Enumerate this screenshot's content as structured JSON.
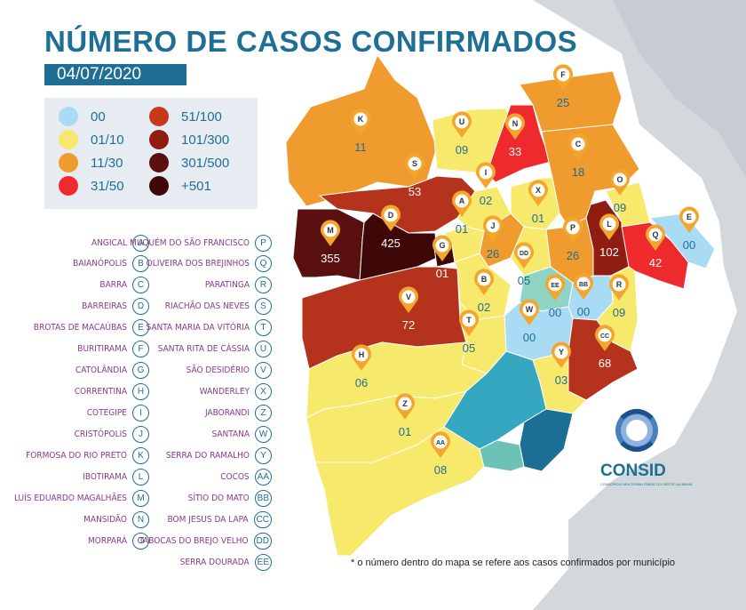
{
  "title": "NÚMERO DE CASOS CONFIRMADOS",
  "date": "04/07/2020",
  "legend": [
    {
      "label": "00",
      "color": "#a9dcf4"
    },
    {
      "label": "01/10",
      "color": "#f6e96b"
    },
    {
      "label": "11/30",
      "color": "#ef9b2e"
    },
    {
      "label": "31/50",
      "color": "#ef2a2d"
    },
    {
      "label": "51/100",
      "color": "#c8391c"
    },
    {
      "label": "101/300",
      "color": "#8f1d12"
    },
    {
      "label": "301/500",
      "color": "#5b1010"
    },
    {
      "label": "+501",
      "color": "#3e0808"
    }
  ],
  "municipalities": [
    {
      "code": "A",
      "name": "ANGICAL",
      "cases": "01"
    },
    {
      "code": "B",
      "name": "BAIANÓPOLIS",
      "cases": "02"
    },
    {
      "code": "C",
      "name": "BARRA",
      "cases": "18"
    },
    {
      "code": "D",
      "name": "BARREIRAS",
      "cases": "425"
    },
    {
      "code": "E",
      "name": "BROTAS DE MACAÚBAS",
      "cases": "00"
    },
    {
      "code": "F",
      "name": "BURITIRAMA",
      "cases": "25"
    },
    {
      "code": "G",
      "name": "CATOLÂNDIA",
      "cases": "01"
    },
    {
      "code": "H",
      "name": "CORRENTINA",
      "cases": "06"
    },
    {
      "code": "I",
      "name": "COTEGIPE",
      "cases": "02"
    },
    {
      "code": "J",
      "name": "CRISTÓPOLIS",
      "cases": "26"
    },
    {
      "code": "K",
      "name": "FORMOSA DO RIO PRETO",
      "cases": "11"
    },
    {
      "code": "L",
      "name": "IBOTIRAMA",
      "cases": "102"
    },
    {
      "code": "M",
      "name": "LUÍS EDUARDO MAGALHÃES",
      "cases": "355"
    },
    {
      "code": "N",
      "name": "MANSIDÃO",
      "cases": "33"
    },
    {
      "code": "O",
      "name": "MORPARÁ",
      "cases": "09"
    },
    {
      "code": "P",
      "name": "MUQUÉM DO SÃO FRANCISCO",
      "cases": "26"
    },
    {
      "code": "Q",
      "name": "OLIVEIRA DOS BREJINHOS",
      "cases": "42"
    },
    {
      "code": "R",
      "name": "PARATINGA",
      "cases": "09"
    },
    {
      "code": "S",
      "name": "RIACHÃO DAS NEVES",
      "cases": "53"
    },
    {
      "code": "T",
      "name": "SANTA MARIA DA VITÓRIA",
      "cases": "05"
    },
    {
      "code": "U",
      "name": "SANTA RITA DE CÁSSIA",
      "cases": "09"
    },
    {
      "code": "V",
      "name": "SÃO DESIDÉRIO",
      "cases": "72"
    },
    {
      "code": "X",
      "name": "WANDERLEY",
      "cases": "01"
    },
    {
      "code": "Z",
      "name": "JABORANDI",
      "cases": "01"
    },
    {
      "code": "W",
      "name": "SANTANA",
      "cases": "00"
    },
    {
      "code": "Y",
      "name": "SERRA DO RAMALHO",
      "cases": "03"
    },
    {
      "code": "AA",
      "name": "COCOS",
      "cases": "08"
    },
    {
      "code": "BB",
      "name": "SÍTIO DO MATO",
      "cases": "00"
    },
    {
      "code": "CC",
      "name": "BOM JESUS DA LAPA",
      "cases": "68"
    },
    {
      "code": "DD",
      "name": "TABOCAS DO BREJO VELHO",
      "cases": "05"
    },
    {
      "code": "EE",
      "name": "SERRA DOURADA",
      "cases": "00"
    }
  ],
  "footnote": "* o número dentro do mapa se refere aos casos confirmados por município",
  "brand": {
    "name": "CONSID",
    "subtitle": "CONSÓRCIO MULTIFINALITÁRIO DO OESTE DA BAHIA"
  }
}
